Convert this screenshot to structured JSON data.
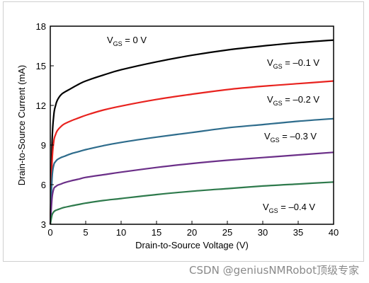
{
  "chart_data": {
    "type": "line",
    "title": "",
    "xlabel": "Drain-to-Source Voltage (V)",
    "ylabel": "Drain-to-Source Current (mA)",
    "xlim": [
      0,
      40
    ],
    "ylim": [
      3,
      18
    ],
    "xticks": [
      "0",
      "5",
      "10",
      "15",
      "20",
      "25",
      "30",
      "35",
      "40"
    ],
    "yticks": [
      "3",
      "6",
      "9",
      "12",
      "15",
      "18"
    ],
    "grid": false,
    "legend": "none",
    "x": [
      0,
      0.25,
      0.5,
      0.75,
      1,
      1.5,
      2,
      3,
      4,
      5,
      7.5,
      10,
      15,
      20,
      25,
      30,
      35,
      40
    ],
    "series": [
      {
        "name": "V_GS = 0 V",
        "color": "#000000",
        "values": [
          3,
          9.2,
          11.3,
          12.0,
          12.4,
          12.8,
          13.0,
          13.3,
          13.6,
          13.85,
          14.3,
          14.7,
          15.3,
          15.8,
          16.2,
          16.5,
          16.75,
          16.95
        ]
      },
      {
        "name": "V_GS = -0.1 V",
        "color": "#e8231f",
        "values": [
          3,
          7.7,
          9.3,
          9.8,
          10.1,
          10.4,
          10.6,
          10.85,
          11.05,
          11.25,
          11.65,
          11.95,
          12.45,
          12.85,
          13.2,
          13.45,
          13.65,
          13.85
        ]
      },
      {
        "name": "V_GS = -0.2 V",
        "color": "#2e6c8c",
        "values": [
          3,
          6.5,
          7.5,
          7.75,
          7.9,
          8.05,
          8.15,
          8.35,
          8.5,
          8.65,
          8.95,
          9.2,
          9.6,
          9.95,
          10.3,
          10.55,
          10.8,
          11.0
        ]
      },
      {
        "name": "V_GS = -0.3 V",
        "color": "#6b2f88",
        "values": [
          3,
          5.0,
          5.7,
          5.85,
          5.95,
          6.05,
          6.15,
          6.3,
          6.42,
          6.55,
          6.75,
          6.95,
          7.3,
          7.6,
          7.85,
          8.05,
          8.25,
          8.45
        ]
      },
      {
        "name": "V_GS = -0.4 V",
        "color": "#2e7a4c",
        "values": [
          3,
          3.7,
          3.95,
          4.05,
          4.1,
          4.2,
          4.28,
          4.4,
          4.5,
          4.6,
          4.8,
          4.95,
          5.25,
          5.5,
          5.7,
          5.9,
          6.05,
          6.2
        ]
      }
    ],
    "annotations": [
      {
        "main": "V",
        "sub": "GS",
        "rest": " = 0 V"
      },
      {
        "main": "V",
        "sub": "GS",
        "rest": " = –0.1 V"
      },
      {
        "main": "V",
        "sub": "GS",
        "rest": " = –0.2 V"
      },
      {
        "main": "V",
        "sub": "GS",
        "rest": " = –0.3 V"
      },
      {
        "main": "V",
        "sub": "GS",
        "rest": " = –0.4 V"
      }
    ]
  },
  "watermark": "CSDN @geniusNMRobot顶级专家"
}
